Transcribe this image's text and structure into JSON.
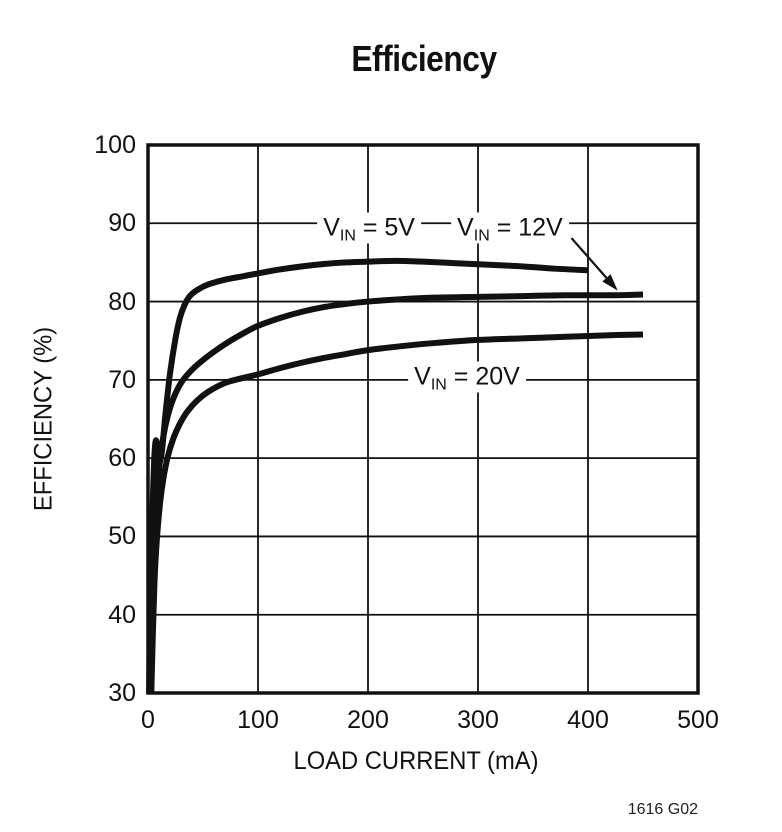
{
  "figure": {
    "title": "Efficiency",
    "figure_code": "1616 G02",
    "background": "#ffffff",
    "ink_color": "#111111"
  },
  "chart_data": {
    "type": "line",
    "title": "Efficiency",
    "xlabel": "LOAD CURRENT (mA)",
    "ylabel": "EFFICIENCY (%)",
    "xlim": [
      0,
      500
    ],
    "ylim": [
      30,
      100
    ],
    "xticks": [
      0,
      100,
      200,
      300,
      400,
      500
    ],
    "yticks": [
      30,
      40,
      50,
      60,
      70,
      80,
      90,
      100
    ],
    "grid": true,
    "legend_position": "inline-curve-labels",
    "series": [
      {
        "name": "VIN = 5V",
        "label_v": "V",
        "label_sub": "IN",
        "label_rest": " = 5V",
        "label_anchor_data": [
          201,
          89.4
        ],
        "points": [
          [
            1,
            30
          ],
          [
            2,
            41
          ],
          [
            3.5,
            51
          ],
          [
            5,
            57.5
          ],
          [
            6,
            60.8
          ],
          [
            7,
            62.2
          ],
          [
            8,
            61.9
          ],
          [
            9.5,
            60.4
          ],
          [
            11,
            59.6
          ],
          [
            13,
            61.3
          ],
          [
            16,
            65.8
          ],
          [
            20,
            70.8
          ],
          [
            25,
            75.3
          ],
          [
            29,
            77.9
          ],
          [
            33,
            79.5
          ],
          [
            38,
            80.7
          ],
          [
            45,
            81.5
          ],
          [
            55,
            82.2
          ],
          [
            70,
            82.8
          ],
          [
            85,
            83.2
          ],
          [
            100,
            83.6
          ],
          [
            120,
            84.1
          ],
          [
            140,
            84.5
          ],
          [
            160,
            84.8
          ],
          [
            180,
            85.0
          ],
          [
            200,
            85.1
          ],
          [
            225,
            85.2
          ],
          [
            250,
            85.1
          ],
          [
            280,
            84.9
          ],
          [
            310,
            84.7
          ],
          [
            340,
            84.5
          ],
          [
            370,
            84.2
          ],
          [
            400,
            84.0
          ]
        ]
      },
      {
        "name": "VIN = 12V",
        "label_v": "V",
        "label_sub": "IN",
        "label_rest": " = 12V",
        "label_anchor_data": [
          329,
          89.4
        ],
        "points": [
          [
            2,
            30
          ],
          [
            3.5,
            41
          ],
          [
            5,
            48
          ],
          [
            7,
            53.5
          ],
          [
            9,
            57
          ],
          [
            11,
            59.8
          ],
          [
            14,
            62.8
          ],
          [
            18,
            65.4
          ],
          [
            23,
            67.6
          ],
          [
            30,
            69.6
          ],
          [
            38,
            71.0
          ],
          [
            48,
            72.3
          ],
          [
            60,
            73.6
          ],
          [
            75,
            75.0
          ],
          [
            90,
            76.2
          ],
          [
            100,
            76.9
          ],
          [
            120,
            77.9
          ],
          [
            140,
            78.7
          ],
          [
            160,
            79.3
          ],
          [
            180,
            79.7
          ],
          [
            200,
            80.0
          ],
          [
            230,
            80.3
          ],
          [
            260,
            80.5
          ],
          [
            300,
            80.6
          ],
          [
            340,
            80.7
          ],
          [
            380,
            80.8
          ],
          [
            420,
            80.8
          ],
          [
            450,
            80.9
          ]
        ]
      },
      {
        "name": "VIN = 20V",
        "label_v": "V",
        "label_sub": "IN",
        "label_rest": " = 20V",
        "label_anchor_data": [
          290,
          70.4
        ],
        "points": [
          [
            3,
            30
          ],
          [
            4.5,
            38
          ],
          [
            6,
            44.5
          ],
          [
            8,
            49.5
          ],
          [
            11,
            54.3
          ],
          [
            14,
            57.4
          ],
          [
            18,
            60.2
          ],
          [
            23,
            62.5
          ],
          [
            29,
            64.4
          ],
          [
            36,
            66.0
          ],
          [
            45,
            67.4
          ],
          [
            55,
            68.5
          ],
          [
            70,
            69.6
          ],
          [
            85,
            70.2
          ],
          [
            100,
            70.7
          ],
          [
            120,
            71.5
          ],
          [
            140,
            72.2
          ],
          [
            160,
            72.8
          ],
          [
            180,
            73.3
          ],
          [
            200,
            73.8
          ],
          [
            230,
            74.3
          ],
          [
            260,
            74.7
          ],
          [
            300,
            75.1
          ],
          [
            340,
            75.3
          ],
          [
            380,
            75.5
          ],
          [
            420,
            75.7
          ],
          [
            450,
            75.8
          ]
        ]
      }
    ],
    "annotation_arrow": {
      "points_to_series": "VIN = 12V",
      "from_data": [
        385,
        88.1
      ],
      "to_data": [
        427,
        81.4
      ]
    }
  }
}
